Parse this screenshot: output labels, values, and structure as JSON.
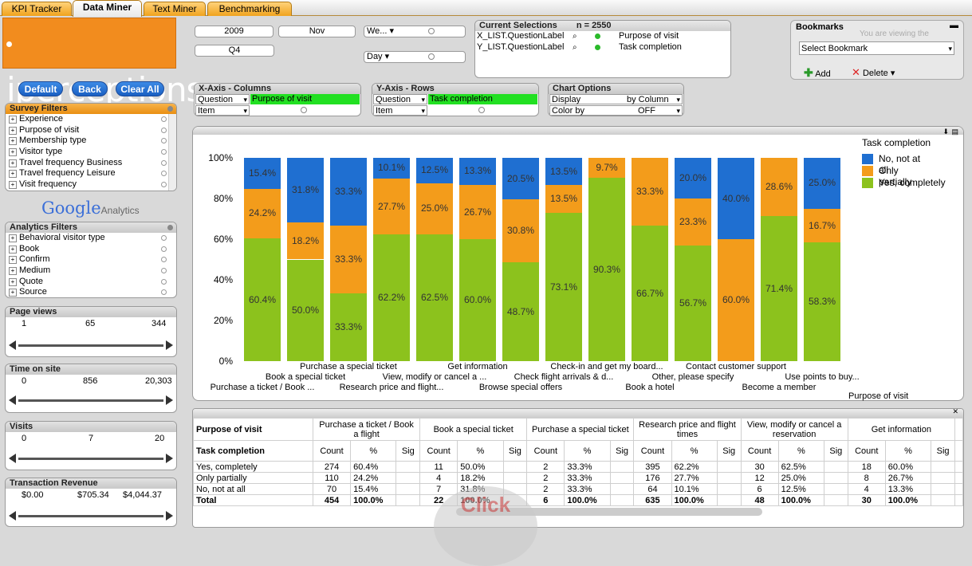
{
  "tabs": [
    "KPI Tracker",
    "Data Miner",
    "Text Miner",
    "Benchmarking"
  ],
  "logo_text": "iperceptions",
  "buttons": {
    "default": "Default",
    "back": "Back",
    "clear_all": "Clear All"
  },
  "survey_filters": {
    "title": "Survey Filters",
    "items": [
      "Experience",
      "Purpose of visit",
      "Membership type",
      "Visitor type",
      "Travel frequency Business",
      "Travel frequency Leisure",
      "Visit frequency"
    ]
  },
  "google_analytics": {
    "google": "Google",
    "analytics": "Analytics"
  },
  "analytics_filters": {
    "title": "Analytics Filters",
    "items": [
      "Behavioral visitor type",
      "Book",
      "Confirm",
      "Medium",
      "Quote",
      "Source"
    ]
  },
  "page_views": {
    "title": "Page views",
    "ticks": [
      "1",
      "65",
      "344"
    ]
  },
  "time_on_site": {
    "title": "Time on site",
    "ticks": [
      "0",
      "856",
      "20,303"
    ]
  },
  "visits": {
    "title": "Visits",
    "ticks": [
      "0",
      "7",
      "20"
    ]
  },
  "transaction_revenue": {
    "title": "Transaction Revenue",
    "ticks": [
      "$0.00",
      "$705.34",
      "$4,044.37"
    ]
  },
  "time": {
    "year": "2009",
    "month": "Nov",
    "quarter": "Q4",
    "week": "We...",
    "day": "Day"
  },
  "current_selections": {
    "title": "Current Selections",
    "n": "n = 2550",
    "rows": [
      {
        "field": "X_LIST.QuestionLabel",
        "value": "Purpose of visit"
      },
      {
        "field": "Y_LIST.QuestionLabel",
        "value": "Task completion"
      }
    ]
  },
  "bookmarks": {
    "title": "Bookmarks",
    "ghost": "You are viewing the",
    "select": "Select Bookmark",
    "add": "Add",
    "delete": "Delete"
  },
  "x_axis": {
    "title": "X-Axis - Columns",
    "q_label": "Question",
    "q_value": "Purpose of visit",
    "item_label": "Item"
  },
  "y_axis": {
    "title": "Y-Axis - Rows",
    "q_label": "Question",
    "q_value": "Task completion",
    "item_label": "Item"
  },
  "chart_options": {
    "title": "Chart Options",
    "display_label": "Display",
    "display_value": "by Column",
    "color_label": "Color by",
    "color_value": "OFF"
  },
  "colors": {
    "no": "#1f6fd1",
    "partial": "#f39c1b",
    "yes": "#8cc21d"
  },
  "chart_data": {
    "type": "bar",
    "stacked": true,
    "title": "",
    "xlabel": "Purpose of visit",
    "ylabel": "",
    "yticks": [
      "0%",
      "20%",
      "40%",
      "60%",
      "80%",
      "100%"
    ],
    "legend_title": "Task completion",
    "categories": [
      "Purchase a ticket / Book ...",
      "Book a special ticket",
      "Purchase a special ticket",
      "Research price and flight...",
      "View, modify or cancel a ...",
      "Get information",
      "Browse special offers",
      "Check flight arrivals & d...",
      "Check-in and get my board...",
      "Book a hotel",
      "Other, please specify",
      "Contact customer support",
      "Become a member",
      "Use points to buy..."
    ],
    "series": [
      {
        "name": "Yes, completely",
        "values": [
          60.4,
          50.0,
          33.3,
          62.2,
          62.5,
          60.0,
          48.7,
          73.1,
          90.3,
          66.7,
          56.7,
          0,
          71.4,
          58.3
        ],
        "labels": [
          "60.4%",
          "50.0%",
          "33.3%",
          "62.2%",
          "62.5%",
          "60.0%",
          "48.7%",
          "73.1%",
          "90.3%",
          "66.7%",
          "56.7%",
          "",
          "71.4%",
          "58.3%"
        ]
      },
      {
        "name": "Only partially",
        "values": [
          24.2,
          18.2,
          33.3,
          27.7,
          25.0,
          26.7,
          30.8,
          13.5,
          9.7,
          33.3,
          23.3,
          60.0,
          28.6,
          16.7
        ],
        "labels": [
          "24.2%",
          "18.2%",
          "33.3%",
          "27.7%",
          "25.0%",
          "26.7%",
          "30.8%",
          "13.5%",
          "9.7%",
          "33.3%",
          "23.3%",
          "60.0%",
          "28.6%",
          "16.7%"
        ]
      },
      {
        "name": "No, not at all",
        "values": [
          15.4,
          31.8,
          33.3,
          10.1,
          12.5,
          13.3,
          20.5,
          13.5,
          0,
          0,
          20.0,
          40.0,
          0,
          25.0
        ],
        "labels": [
          "15.4%",
          "31.8%",
          "33.3%",
          "10.1%",
          "12.5%",
          "13.3%",
          "20.5%",
          "13.5%",
          "",
          "",
          "20.0%",
          "40.0%",
          "",
          "25.0%"
        ]
      }
    ]
  },
  "table": {
    "row_header": "Purpose of visit",
    "sub_header": "Task completion",
    "groups": [
      "Purchase a ticket / Book a flight",
      "Book a special ticket",
      "Purchase a special ticket",
      "Research price and flight times",
      "View, modify or cancel a reservation",
      "Get information"
    ],
    "subcols": [
      "Count",
      "%",
      "Sig"
    ],
    "rows": [
      {
        "label": "Yes, completely",
        "cells": [
          [
            "274",
            "60.4%",
            ""
          ],
          [
            "11",
            "50.0%",
            ""
          ],
          [
            "2",
            "33.3%",
            ""
          ],
          [
            "395",
            "62.2%",
            ""
          ],
          [
            "30",
            "62.5%",
            ""
          ],
          [
            "18",
            "60.0%",
            ""
          ]
        ]
      },
      {
        "label": "Only partially",
        "cells": [
          [
            "110",
            "24.2%",
            ""
          ],
          [
            "4",
            "18.2%",
            ""
          ],
          [
            "2",
            "33.3%",
            ""
          ],
          [
            "176",
            "27.7%",
            ""
          ],
          [
            "12",
            "25.0%",
            ""
          ],
          [
            "8",
            "26.7%",
            ""
          ]
        ]
      },
      {
        "label": "No, not at all",
        "cells": [
          [
            "70",
            "15.4%",
            ""
          ],
          [
            "7",
            "31.8%",
            ""
          ],
          [
            "2",
            "33.3%",
            ""
          ],
          [
            "64",
            "10.1%",
            ""
          ],
          [
            "6",
            "12.5%",
            ""
          ],
          [
            "4",
            "13.3%",
            ""
          ]
        ]
      },
      {
        "label": "Total",
        "cells": [
          [
            "454",
            "100.0%",
            ""
          ],
          [
            "22",
            "100.0%",
            ""
          ],
          [
            "6",
            "100.0%",
            ""
          ],
          [
            "635",
            "100.0%",
            ""
          ],
          [
            "48",
            "100.0%",
            ""
          ],
          [
            "30",
            "100.0%",
            ""
          ]
        ]
      }
    ]
  }
}
